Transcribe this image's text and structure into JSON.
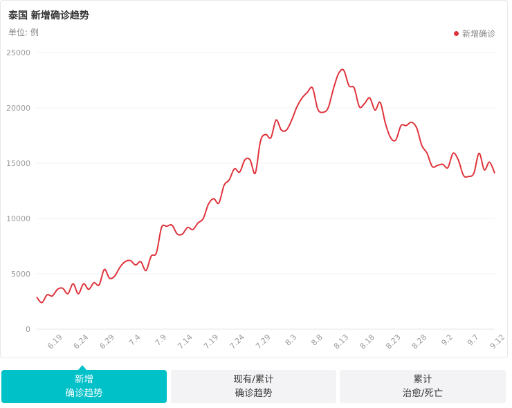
{
  "chart_title": "泰国 新增确诊趋势",
  "unit_label": "单位: 例",
  "colors": {
    "line": "#e0323b",
    "accent": "#00c1c8",
    "grid": "#f0f0f0",
    "axis_text": "#999999"
  },
  "tabs": [
    {
      "line1": "新增",
      "line2": "确诊趋势",
      "active": true
    },
    {
      "line1": "现有/累计",
      "line2": "确诊趋势",
      "active": false
    },
    {
      "line1": "累计",
      "line2": "治愈/死亡",
      "active": false
    }
  ],
  "chart_data": {
    "type": "line",
    "title": "泰国 新增确诊趋势",
    "unit": "单位: 例",
    "legend_position": "top-right",
    "grid": true,
    "ylim": [
      0,
      25000
    ],
    "y_ticks": [
      "0",
      "5000",
      "10000",
      "15000",
      "20000",
      "25000"
    ],
    "x_tick_labels": [
      "6.19",
      "6.24",
      "6.29",
      "7.4",
      "7.9",
      "7.14",
      "7.19",
      "7.24",
      "7.29",
      "8.3",
      "8.8",
      "8.13",
      "8.18",
      "8.23",
      "8.28",
      "9.2",
      "9.7",
      "9.12"
    ],
    "x_start": "6.14",
    "x_end": "9.12",
    "series": [
      {
        "name": "新增确诊",
        "color": "#e0323b",
        "values": [
          2900,
          2400,
          3100,
          3000,
          3600,
          3700,
          3200,
          4100,
          3200,
          4100,
          3600,
          4200,
          4000,
          5400,
          4600,
          4800,
          5600,
          6100,
          6200,
          5800,
          6100,
          5300,
          6600,
          6900,
          9200,
          9300,
          9400,
          8600,
          8600,
          9200,
          9000,
          9600,
          10000,
          11300,
          11800,
          11400,
          13000,
          13500,
          14500,
          14200,
          15300,
          15300,
          14100,
          17000,
          17600,
          17300,
          18900,
          18000,
          18000,
          18900,
          20100,
          20900,
          21400,
          21800,
          19900,
          19600,
          20000,
          21700,
          23100,
          23400,
          22000,
          21800,
          20100,
          20400,
          20900,
          19800,
          20500,
          18600,
          17300,
          17100,
          18400,
          18400,
          18700,
          18200,
          16600,
          15900,
          14700,
          14800,
          14900,
          14600,
          15900,
          15300,
          13900,
          13800,
          14100,
          15900,
          14400,
          15100,
          14100
        ]
      }
    ]
  }
}
